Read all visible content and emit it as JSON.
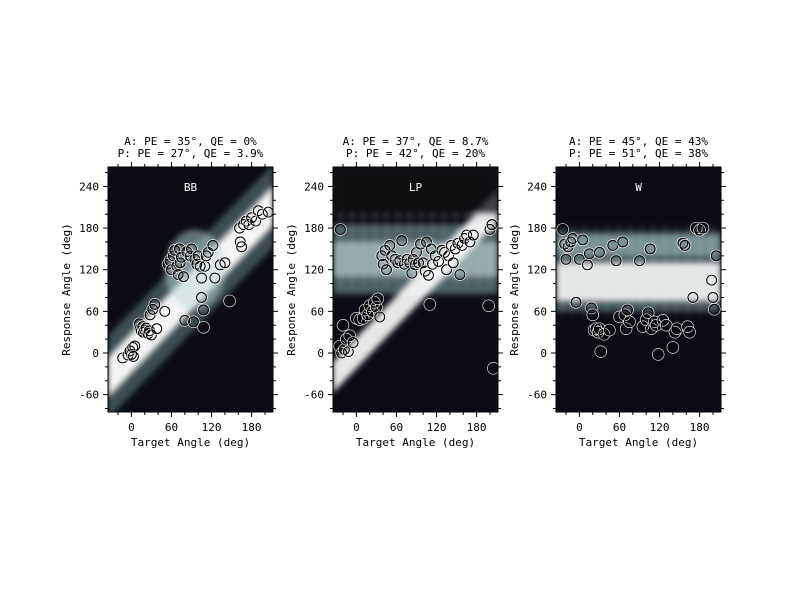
{
  "chart_data": [
    {
      "type": "scatter",
      "panel_label": "BB",
      "title_lines": [
        "A: PE = 35°, QE = 0%",
        "P: PE = 27°, QE = 3.9%"
      ],
      "xlabel": "Target Angle (deg)",
      "ylabel": "Response Angle (deg)",
      "xlim": [
        -35,
        212
      ],
      "ylim": [
        -85,
        268
      ],
      "xticks": [
        0,
        60,
        120,
        180
      ],
      "yticks": [
        -60,
        0,
        60,
        120,
        180,
        240
      ],
      "density_description": "bright diagonal band along response = target",
      "points": [
        [
          -13,
          -7
        ],
        [
          -5,
          -3
        ],
        [
          0,
          -2
        ],
        [
          -2,
          3
        ],
        [
          2,
          8
        ],
        [
          5,
          10
        ],
        [
          3,
          -5
        ],
        [
          12,
          42
        ],
        [
          13,
          35
        ],
        [
          15,
          32
        ],
        [
          17,
          38
        ],
        [
          18,
          30
        ],
        [
          20,
          33
        ],
        [
          22,
          36
        ],
        [
          25,
          28
        ],
        [
          27,
          32
        ],
        [
          30,
          26
        ],
        [
          28,
          55
        ],
        [
          32,
          63
        ],
        [
          35,
          70
        ],
        [
          38,
          35
        ],
        [
          50,
          60
        ],
        [
          55,
          128
        ],
        [
          58,
          133
        ],
        [
          60,
          120
        ],
        [
          63,
          140
        ],
        [
          65,
          148
        ],
        [
          68,
          125
        ],
        [
          70,
          113
        ],
        [
          72,
          150
        ],
        [
          73,
          130
        ],
        [
          75,
          138
        ],
        [
          78,
          110
        ],
        [
          80,
          47
        ],
        [
          83,
          146
        ],
        [
          88,
          140
        ],
        [
          90,
          150
        ],
        [
          93,
          45
        ],
        [
          95,
          135
        ],
        [
          98,
          128
        ],
        [
          100,
          140
        ],
        [
          103,
          125
        ],
        [
          105,
          108
        ],
        [
          105,
          80
        ],
        [
          108,
          62
        ],
        [
          110,
          125
        ],
        [
          108,
          37
        ],
        [
          112,
          140
        ],
        [
          115,
          145
        ],
        [
          122,
          155
        ],
        [
          125,
          108
        ],
        [
          133,
          127
        ],
        [
          140,
          130
        ],
        [
          147,
          75
        ],
        [
          162,
          180
        ],
        [
          163,
          160
        ],
        [
          165,
          153
        ],
        [
          168,
          185
        ],
        [
          172,
          190
        ],
        [
          176,
          185
        ],
        [
          180,
          195
        ],
        [
          186,
          190
        ],
        [
          190,
          205
        ],
        [
          196,
          200
        ],
        [
          205,
          203
        ]
      ]
    },
    {
      "type": "scatter",
      "panel_label": "LP",
      "title_lines": [
        "A: PE = 37°, QE = 8.7%",
        "P: PE = 42°, QE = 20%"
      ],
      "xlabel": "Target Angle (deg)",
      "ylabel": "Response Angle (deg)",
      "xlim": [
        -35,
        212
      ],
      "ylim": [
        -85,
        268
      ],
      "xticks": [
        0,
        60,
        120,
        180
      ],
      "yticks": [
        -60,
        0,
        60,
        120,
        180,
        240
      ],
      "density_description": "diagonal band plus broad horizontal band near 120-150 deg",
      "points": [
        [
          -24,
          178
        ],
        [
          -25,
          10
        ],
        [
          -22,
          0
        ],
        [
          -20,
          40
        ],
        [
          -18,
          5
        ],
        [
          -15,
          20
        ],
        [
          -12,
          2
        ],
        [
          -10,
          25
        ],
        [
          -5,
          15
        ],
        [
          0,
          50
        ],
        [
          5,
          48
        ],
        [
          10,
          50
        ],
        [
          13,
          62
        ],
        [
          17,
          55
        ],
        [
          20,
          68
        ],
        [
          24,
          60
        ],
        [
          27,
          73
        ],
        [
          30,
          66
        ],
        [
          32,
          78
        ],
        [
          35,
          52
        ],
        [
          38,
          140
        ],
        [
          40,
          128
        ],
        [
          43,
          148
        ],
        [
          45,
          120
        ],
        [
          50,
          155
        ],
        [
          53,
          140
        ],
        [
          58,
          135
        ],
        [
          62,
          130
        ],
        [
          65,
          133
        ],
        [
          68,
          162
        ],
        [
          72,
          128
        ],
        [
          76,
          135
        ],
        [
          80,
          130
        ],
        [
          83,
          115
        ],
        [
          85,
          135
        ],
        [
          88,
          127
        ],
        [
          90,
          145
        ],
        [
          93,
          130
        ],
        [
          96,
          157
        ],
        [
          100,
          130
        ],
        [
          103,
          118
        ],
        [
          105,
          160
        ],
        [
          108,
          112
        ],
        [
          110,
          70
        ],
        [
          112,
          150
        ],
        [
          114,
          128
        ],
        [
          118,
          140
        ],
        [
          123,
          132
        ],
        [
          128,
          148
        ],
        [
          132,
          145
        ],
        [
          135,
          120
        ],
        [
          138,
          140
        ],
        [
          142,
          155
        ],
        [
          145,
          130
        ],
        [
          148,
          150
        ],
        [
          152,
          158
        ],
        [
          155,
          113
        ],
        [
          158,
          155
        ],
        [
          162,
          165
        ],
        [
          165,
          170
        ],
        [
          170,
          160
        ],
        [
          175,
          170
        ],
        [
          198,
          68
        ],
        [
          200,
          178
        ],
        [
          203,
          185
        ],
        [
          205,
          -22
        ]
      ]
    },
    {
      "type": "scatter",
      "panel_label": "W",
      "title_lines": [
        "A: PE = 45°, QE = 43%",
        "P: PE = 51°, QE = 38%"
      ],
      "xlabel": "Target Angle (deg)",
      "ylabel": "Response Angle (deg)",
      "xlim": [
        -35,
        212
      ],
      "ylim": [
        -85,
        268
      ],
      "xticks": [
        0,
        60,
        120,
        180
      ],
      "yticks": [
        -60,
        0,
        60,
        120,
        180,
        240
      ],
      "density_description": "bright horizontal band near 90-130 deg, weaker band near 150 deg",
      "points": [
        [
          -25,
          178
        ],
        [
          -22,
          157
        ],
        [
          -20,
          135
        ],
        [
          -17,
          153
        ],
        [
          -13,
          160
        ],
        [
          -10,
          165
        ],
        [
          -5,
          73
        ],
        [
          0,
          135
        ],
        [
          5,
          163
        ],
        [
          12,
          127
        ],
        [
          15,
          143
        ],
        [
          18,
          65
        ],
        [
          20,
          55
        ],
        [
          22,
          33
        ],
        [
          25,
          35
        ],
        [
          28,
          30
        ],
        [
          30,
          35
        ],
        [
          30,
          145
        ],
        [
          32,
          2
        ],
        [
          37,
          27
        ],
        [
          45,
          33
        ],
        [
          50,
          155
        ],
        [
          55,
          133
        ],
        [
          60,
          52
        ],
        [
          65,
          160
        ],
        [
          68,
          55
        ],
        [
          70,
          35
        ],
        [
          72,
          62
        ],
        [
          75,
          45
        ],
        [
          90,
          133
        ],
        [
          95,
          38
        ],
        [
          100,
          48
        ],
        [
          103,
          58
        ],
        [
          106,
          150
        ],
        [
          108,
          35
        ],
        [
          112,
          45
        ],
        [
          115,
          40
        ],
        [
          118,
          -2
        ],
        [
          125,
          47
        ],
        [
          130,
          40
        ],
        [
          140,
          8
        ],
        [
          143,
          30
        ],
        [
          146,
          35
        ],
        [
          155,
          158
        ],
        [
          158,
          155
        ],
        [
          162,
          38
        ],
        [
          165,
          30
        ],
        [
          170,
          80
        ],
        [
          175,
          180
        ],
        [
          180,
          177
        ],
        [
          185,
          180
        ],
        [
          198,
          105
        ],
        [
          200,
          80
        ],
        [
          202,
          63
        ],
        [
          205,
          140
        ]
      ]
    }
  ]
}
